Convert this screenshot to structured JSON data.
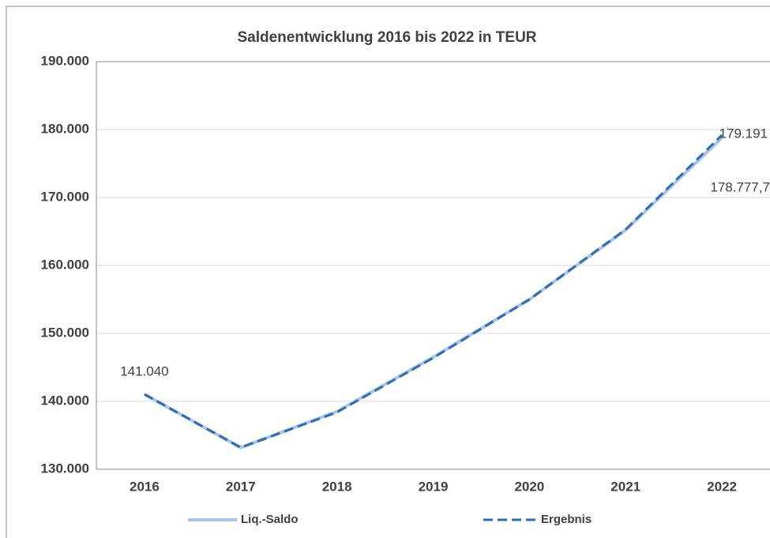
{
  "chart_data": {
    "type": "line",
    "title": "Saldenentwicklung 2016 bis 2022 in TEUR",
    "categories": [
      "2016",
      "2017",
      "2018",
      "2019",
      "2020",
      "2021",
      "2022"
    ],
    "series": [
      {
        "name": "Liq.-Saldo",
        "color": "#a9c4e8",
        "dash": false,
        "values": [
          141040,
          133200,
          138500,
          146500,
          155000,
          165200,
          178777.7
        ],
        "value_labels": [
          "141.040",
          null,
          null,
          null,
          null,
          null,
          "178.777,7"
        ]
      },
      {
        "name": "Ergebnis",
        "color": "#2e6db0",
        "dash": true,
        "values": [
          141040,
          133200,
          138400,
          146400,
          155000,
          165300,
          179191
        ],
        "value_labels": [
          null,
          null,
          null,
          null,
          null,
          null,
          "179.191"
        ]
      }
    ],
    "ylim": [
      130000,
      190000
    ],
    "yticks": [
      {
        "value": 130000,
        "label": "130.000"
      },
      {
        "value": 140000,
        "label": "140.000"
      },
      {
        "value": 150000,
        "label": "150.000"
      },
      {
        "value": 160000,
        "label": "160.000"
      },
      {
        "value": 170000,
        "label": "170.000"
      },
      {
        "value": 180000,
        "label": "180.000"
      },
      {
        "value": 190000,
        "label": "190.000"
      }
    ],
    "grid": true,
    "legend": "bottom"
  }
}
